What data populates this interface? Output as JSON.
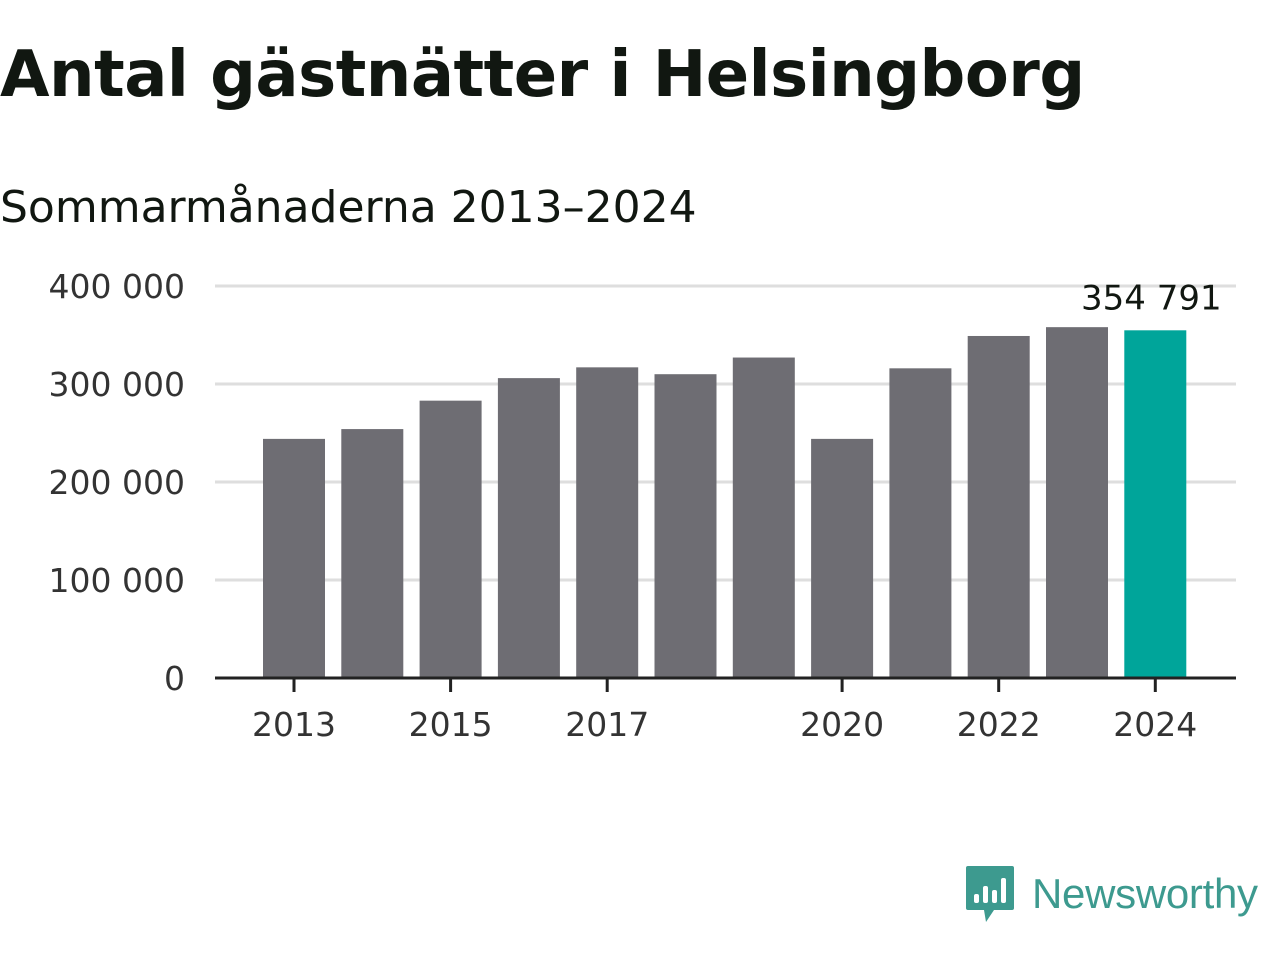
{
  "header": {
    "title": "Antal gästnätter i Helsingborg",
    "subtitle": "Sommarmånaderna 2013–2024"
  },
  "chart_data": {
    "type": "bar",
    "categories": [
      "2013",
      "2014",
      "2015",
      "2016",
      "2017",
      "2018",
      "2019",
      "2020",
      "2021",
      "2022",
      "2023",
      "2024"
    ],
    "values": [
      244000,
      254000,
      283000,
      306000,
      317000,
      310000,
      327000,
      244000,
      316000,
      349000,
      358000,
      354791
    ],
    "ylim": [
      0,
      400000
    ],
    "yticks": [
      0,
      100000,
      200000,
      300000,
      400000
    ],
    "ytick_labels": [
      "0",
      "100 000",
      "200 000",
      "300 000",
      "400 000"
    ],
    "xtick_labels": [
      "2013",
      "2015",
      "2017",
      "2020",
      "2022",
      "2024"
    ],
    "highlight": {
      "category": "2024",
      "label": "354 791"
    },
    "grid": true,
    "colors": {
      "bar": "#6e6d73",
      "highlight": "#00a59a",
      "grid": "#dedede",
      "axis": "#222222"
    }
  },
  "branding": {
    "logo_text": "Newsworthy",
    "logo_icon": "newsworthy-chart-bubble-icon",
    "color": "#3d9a8f"
  }
}
